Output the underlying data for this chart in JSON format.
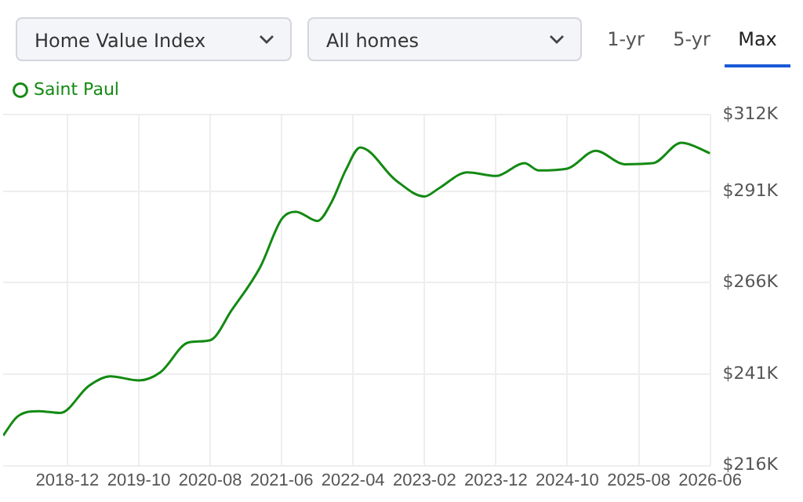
{
  "chart_data": {
    "type": "line",
    "title": "Home Value Index",
    "subtitle": "All homes",
    "annotations": [
      "1-yr",
      "5-yr",
      "Max"
    ],
    "x": [
      "2018-03",
      "2018-05",
      "2018-08",
      "2018-11",
      "2019-03",
      "2019-06",
      "2019-10",
      "2020-01",
      "2020-05",
      "2020-08",
      "2020-11",
      "2021-03",
      "2021-06",
      "2021-08",
      "2021-11",
      "2022-01",
      "2022-03",
      "2022-05",
      "2022-10",
      "2023-02",
      "2023-04",
      "2023-08",
      "2023-12",
      "2024-04",
      "2024-06",
      "2024-10",
      "2025-02",
      "2025-06",
      "2025-10",
      "2026-02",
      "2026-06"
    ],
    "series": [
      {
        "name": "Saint Paul",
        "color": "#138a13",
        "values": [
          224.2,
          229.4,
          230.9,
          230.4,
          237.8,
          240.4,
          239.3,
          241.5,
          249.7,
          250.3,
          258.5,
          270.3,
          283.4,
          285.4,
          282.9,
          288.1,
          296.9,
          303,
          294,
          289.6,
          291.8,
          296.2,
          295.2,
          298.7,
          296.7,
          297.2,
          302.1,
          298.4,
          298.7,
          304.3,
          301.4
        ]
      }
    ],
    "xlim": [
      "2018-03",
      "2026-06"
    ],
    "xticks": [
      "2018-12",
      "2019-10",
      "2020-08",
      "2021-06",
      "2022-04",
      "2023-02",
      "2023-12",
      "2024-10",
      "2025-08",
      "2026-06"
    ],
    "ylim": [
      216,
      312
    ],
    "yticks": [
      {
        "value": 216,
        "label": "$216K"
      },
      {
        "value": 241,
        "label": "$241K"
      },
      {
        "value": 266,
        "label": "$266K"
      },
      {
        "value": 291,
        "label": "$291K"
      },
      {
        "value": 312,
        "label": "$312K"
      }
    ],
    "grid": true,
    "legend": "top left"
  }
}
